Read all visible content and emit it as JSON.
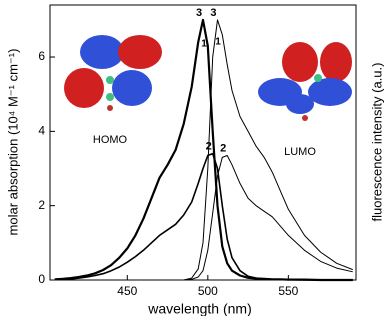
{
  "chart_data": {
    "type": "line",
    "x_label": "wavelength (nm)",
    "y_label": "molar absorption (10⁴ M⁻¹ cm⁻¹)",
    "y2_label": "fluorescence intensity (a.u.)",
    "x": [
      405,
      410,
      415,
      420,
      425,
      430,
      435,
      440,
      445,
      450,
      455,
      460,
      465,
      470,
      475,
      480,
      485,
      490,
      494,
      497,
      500,
      503,
      506,
      509,
      512,
      515,
      520,
      525,
      530,
      535,
      540,
      545,
      550,
      560,
      570,
      580,
      590
    ],
    "series": [
      {
        "name": "3",
        "color": "#000000",
        "width": 2.2,
        "values": [
          0.02,
          0.03,
          0.05,
          0.08,
          0.12,
          0.18,
          0.27,
          0.4,
          0.6,
          0.85,
          1.2,
          1.65,
          2.2,
          2.75,
          3.1,
          3.5,
          4.2,
          5.2,
          6.4,
          7.0,
          6.3,
          4.0,
          2.0,
          0.9,
          0.45,
          0.25,
          0.12,
          0.06,
          0.04,
          0.03,
          0.02,
          0.02,
          0.01,
          0.01,
          0,
          0,
          0
        ]
      },
      {
        "name": "2",
        "color": "#000000",
        "width": 1.6,
        "values": [
          0.01,
          0.02,
          0.03,
          0.05,
          0.08,
          0.12,
          0.17,
          0.25,
          0.35,
          0.48,
          0.63,
          0.8,
          1.0,
          1.2,
          1.35,
          1.5,
          1.75,
          2.1,
          2.6,
          3.0,
          3.35,
          3.4,
          3.0,
          2.0,
          1.1,
          0.6,
          0.25,
          0.1,
          0.05,
          0.03,
          0.02,
          0.01,
          0.01,
          0,
          0,
          0,
          0
        ]
      },
      {
        "name": "3",
        "color": "#000000",
        "width": 1,
        "values": [
          0,
          0,
          0,
          0,
          0,
          0,
          0,
          0,
          0,
          0,
          0,
          0,
          0,
          0,
          0,
          0,
          0,
          0.05,
          0.3,
          1.0,
          3.0,
          6.0,
          7.0,
          6.6,
          5.8,
          5.1,
          4.4,
          4.0,
          3.6,
          3.3,
          2.9,
          2.4,
          1.9,
          1.2,
          0.75,
          0.45,
          0.28
        ]
      },
      {
        "name": "2",
        "color": "#000000",
        "width": 1,
        "values": [
          0,
          0,
          0,
          0,
          0,
          0,
          0,
          0,
          0,
          0,
          0,
          0,
          0,
          0,
          0,
          0,
          0,
          0.02,
          0.08,
          0.25,
          0.8,
          1.8,
          2.8,
          3.3,
          3.35,
          3.1,
          2.6,
          2.2,
          2.0,
          1.85,
          1.7,
          1.45,
          1.2,
          0.8,
          0.5,
          0.32,
          0.22
        ]
      }
    ],
    "annotations": [
      "1",
      "1",
      "HOMO",
      "LUMO"
    ],
    "xlim": [
      402,
      592
    ],
    "ylim": [
      0,
      7.4
    ],
    "xticks": [
      450,
      500,
      550
    ],
    "yticks": [
      0,
      2,
      4,
      6
    ]
  }
}
